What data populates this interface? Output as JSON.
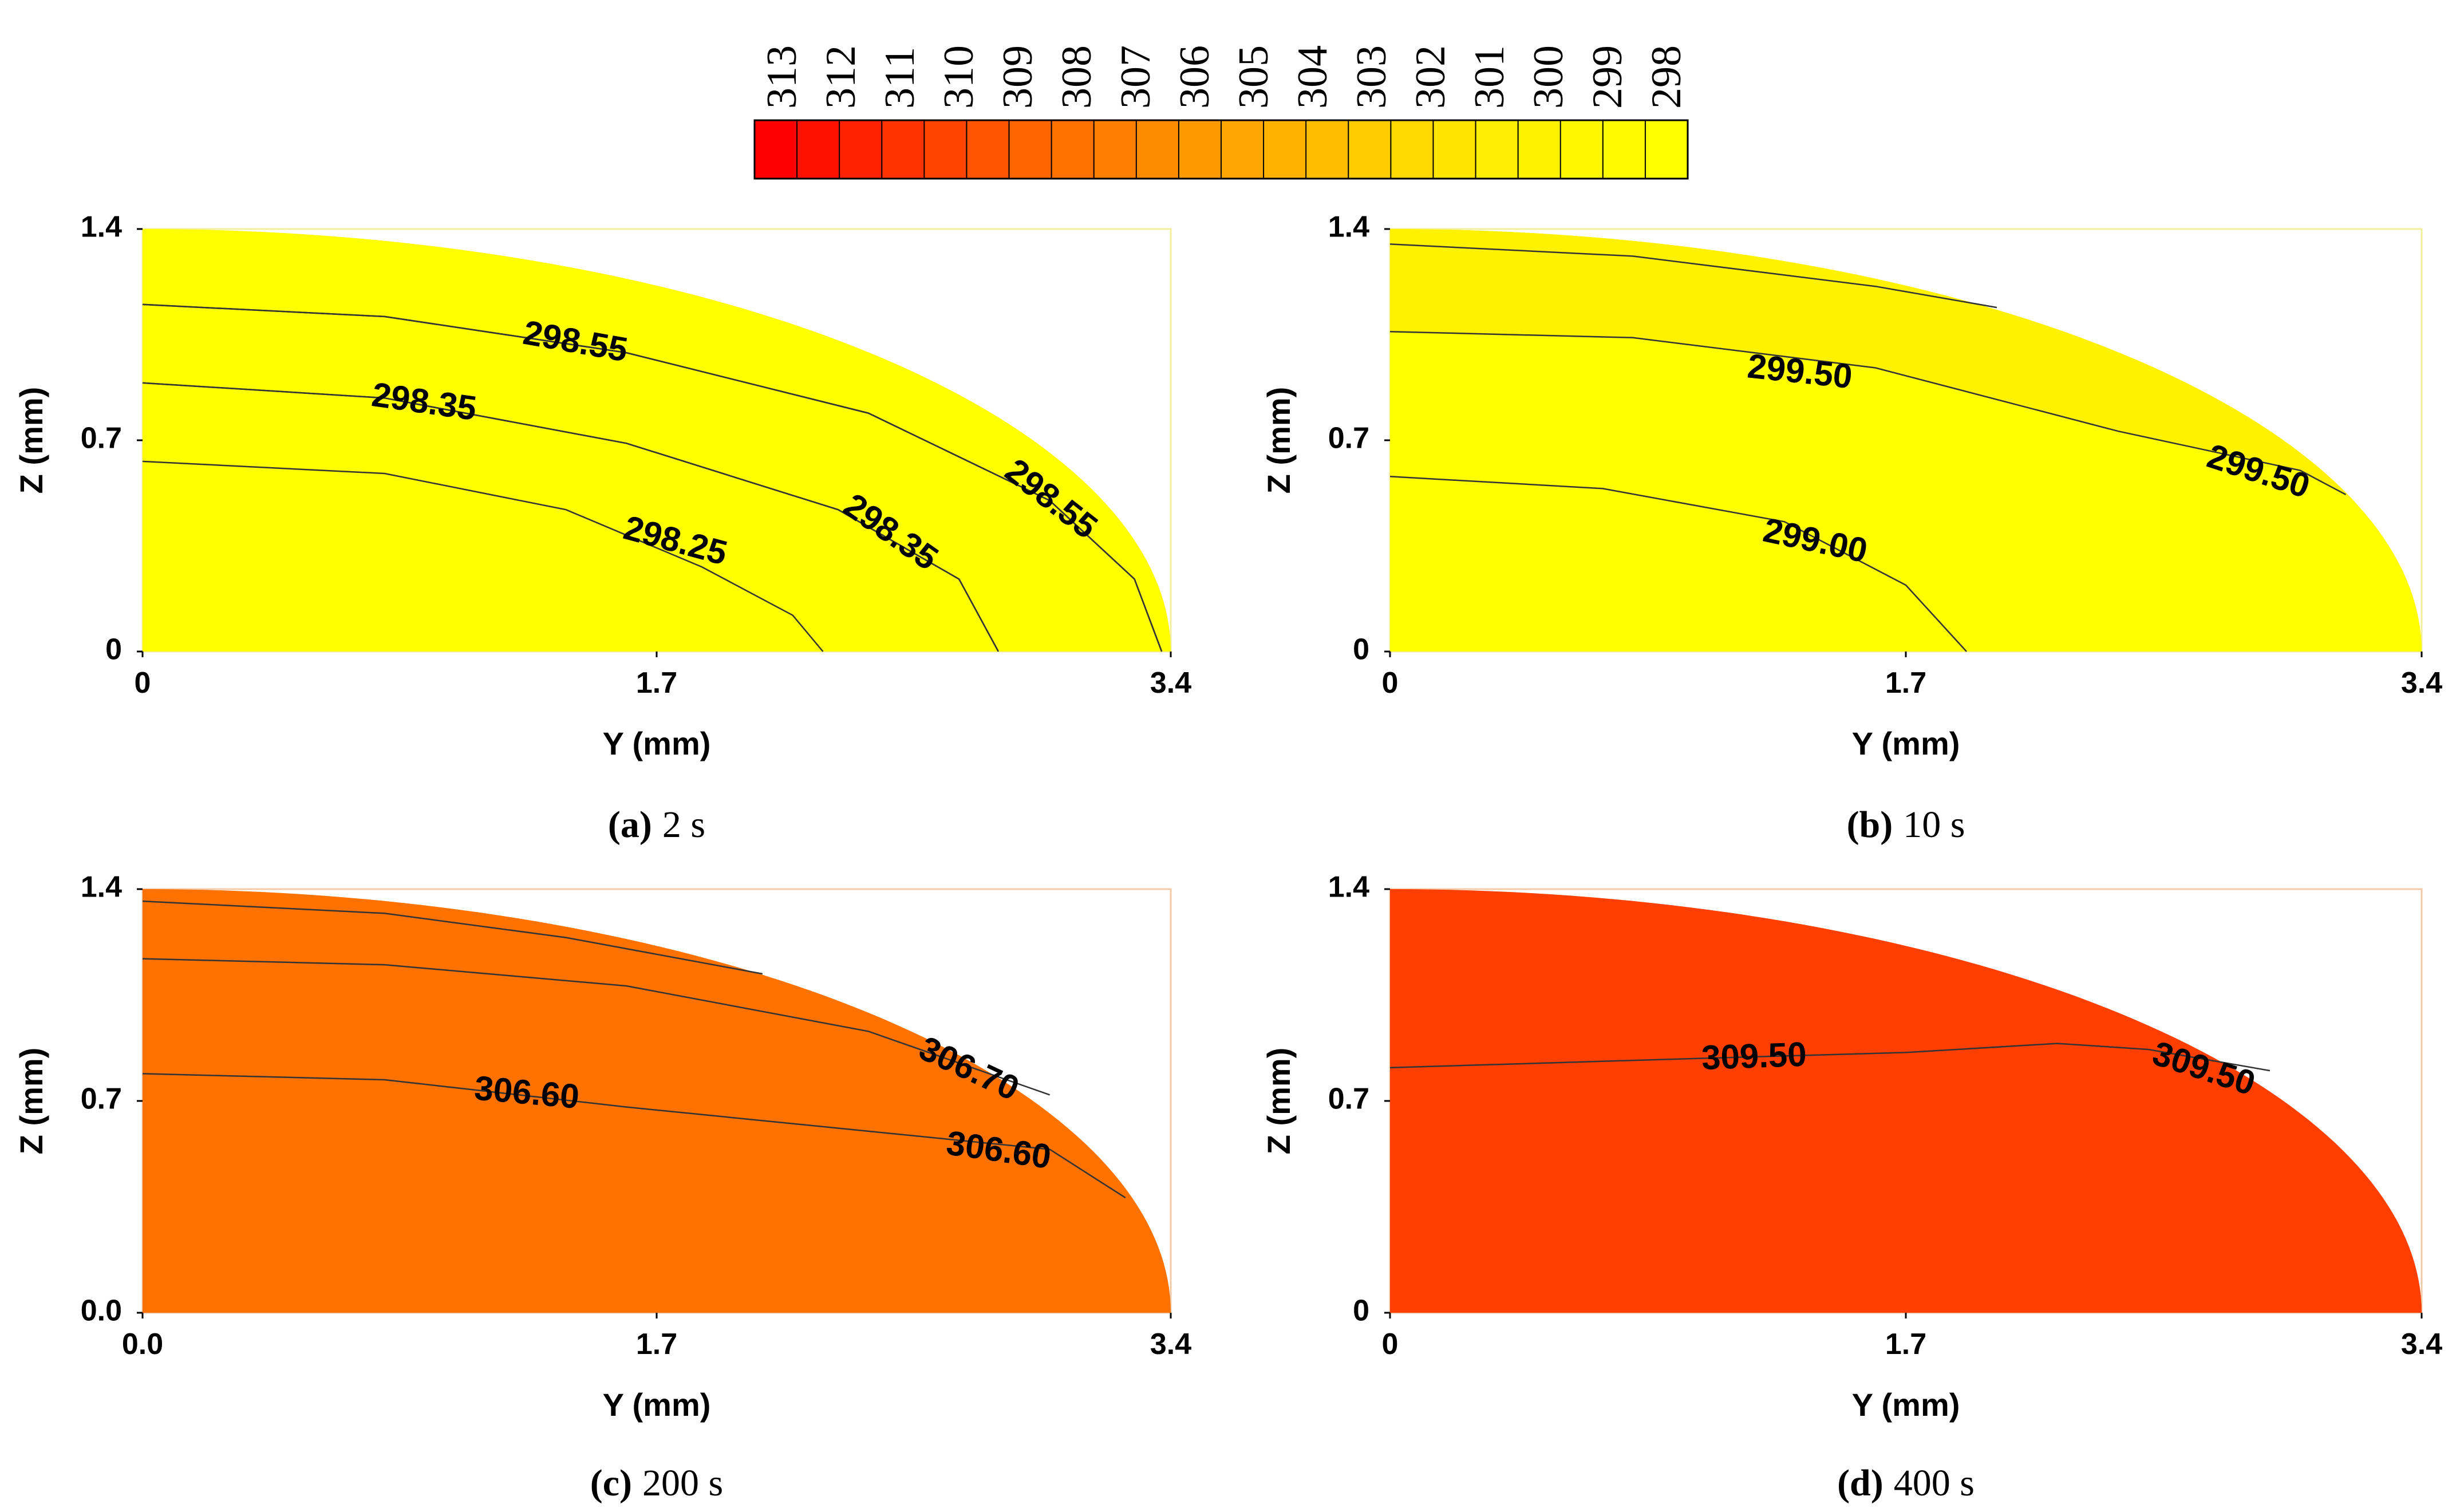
{
  "colorbar": {
    "labels": [
      "313",
      "312",
      "311",
      "310",
      "309",
      "308",
      "307",
      "306",
      "305",
      "304",
      "303",
      "302",
      "301",
      "300",
      "299",
      "298"
    ],
    "colors": [
      "#ff0000",
      "#ff1100",
      "#ff2200",
      "#ff3300",
      "#ff4400",
      "#ff5500",
      "#ff6600",
      "#ff7200",
      "#ff7f00",
      "#ff8c00",
      "#ff9900",
      "#ffa600",
      "#ffb200",
      "#ffbf00",
      "#ffcc00",
      "#ffd900",
      "#ffe500",
      "#ffee00",
      "#fff200",
      "#fff700",
      "#fffa00",
      "#ffff00"
    ]
  },
  "chart_data": [
    {
      "type": "contour",
      "caption_letter": "(a)",
      "caption_time": "2 s",
      "fill_color": "#ffff00",
      "xlabel": "Y (mm)",
      "ylabel": "Z (mm)",
      "xlim": [
        0,
        3.4
      ],
      "ylim": [
        0,
        1.4
      ],
      "xticks": [
        "0",
        "1.7",
        "3.4"
      ],
      "yticks": [
        "0",
        "0.7",
        "1.4"
      ],
      "contours": [
        {
          "value": "298.25",
          "points": [
            [
              0,
              0.63
            ],
            [
              0.8,
              0.59
            ],
            [
              1.4,
              0.47
            ],
            [
              1.85,
              0.28
            ],
            [
              2.15,
              0.12
            ],
            [
              2.25,
              0
            ]
          ]
        },
        {
          "value": "298.35",
          "points": [
            [
              0,
              0.89
            ],
            [
              0.8,
              0.84
            ],
            [
              1.6,
              0.69
            ],
            [
              2.3,
              0.47
            ],
            [
              2.7,
              0.24
            ],
            [
              2.83,
              0
            ]
          ]
        },
        {
          "value": "298.35",
          "points": [
            [
              0,
              0.89
            ],
            [
              0.8,
              0.84
            ],
            [
              1.6,
              0.69
            ],
            [
              2.3,
              0.47
            ],
            [
              2.7,
              0.24
            ],
            [
              2.83,
              0
            ]
          ]
        },
        {
          "value": "298.55",
          "points": [
            [
              0,
              1.15
            ],
            [
              0.8,
              1.11
            ],
            [
              1.6,
              0.99
            ],
            [
              2.4,
              0.79
            ],
            [
              3.0,
              0.5
            ],
            [
              3.28,
              0.24
            ],
            [
              3.37,
              0
            ]
          ]
        },
        {
          "value": "298.55",
          "points": [
            [
              0,
              1.15
            ],
            [
              0.8,
              1.11
            ],
            [
              1.6,
              0.99
            ],
            [
              2.4,
              0.79
            ],
            [
              3.0,
              0.5
            ],
            [
              3.28,
              0.24
            ],
            [
              3.37,
              0
            ]
          ]
        }
      ],
      "labels": [
        {
          "text": "298.55",
          "x": 1.43,
          "y": 1.02,
          "angle": 10
        },
        {
          "text": "298.35",
          "x": 0.93,
          "y": 0.82,
          "angle": 8
        },
        {
          "text": "298.25",
          "x": 1.76,
          "y": 0.36,
          "angle": 15
        },
        {
          "text": "298.35",
          "x": 2.47,
          "y": 0.39,
          "angle": 35
        },
        {
          "text": "298.55",
          "x": 3.0,
          "y": 0.5,
          "angle": 38
        }
      ]
    },
    {
      "type": "contour",
      "caption_letter": "(b)",
      "caption_time": "10 s",
      "fill_color": "#ffff00",
      "band_color": "#fff200",
      "xlabel": "Y (mm)",
      "ylabel": "Z (mm)",
      "xlim": [
        0,
        3.4
      ],
      "ylim": [
        0,
        1.4
      ],
      "xticks": [
        "0",
        "1.7",
        "3.4"
      ],
      "yticks": [
        "0",
        "0.7",
        "1.4"
      ],
      "contours": [
        {
          "value": "299.00",
          "points": [
            [
              0,
              0.58
            ],
            [
              0.7,
              0.54
            ],
            [
              1.3,
              0.43
            ],
            [
              1.7,
              0.22
            ],
            [
              1.9,
              0
            ]
          ]
        },
        {
          "value": "299.50",
          "points": [
            [
              0,
              1.06
            ],
            [
              0.8,
              1.04
            ],
            [
              1.6,
              0.94
            ],
            [
              2.4,
              0.73
            ],
            [
              3.0,
              0.6
            ],
            [
              3.15,
              0.52
            ]
          ]
        },
        {
          "value": "",
          "points": [
            [
              0,
              1.35
            ],
            [
              0.8,
              1.31
            ],
            [
              1.6,
              1.21
            ],
            [
              2.0,
              1.14
            ]
          ]
        }
      ],
      "labels": [
        {
          "text": "299.50",
          "x": 1.35,
          "y": 0.92,
          "angle": 6
        },
        {
          "text": "299.50",
          "x": 2.86,
          "y": 0.59,
          "angle": 18
        },
        {
          "text": "299.00",
          "x": 1.4,
          "y": 0.36,
          "angle": 12
        }
      ]
    },
    {
      "type": "contour",
      "caption_letter": "(c)",
      "caption_time": "200 s",
      "fill_color": "#ff7200",
      "xlabel": "Y (mm)",
      "ylabel": "Z (mm)",
      "xlim": [
        0,
        3.4
      ],
      "ylim": [
        0,
        1.4
      ],
      "xticks": [
        "0.0",
        "1.7",
        "3.4"
      ],
      "yticks": [
        "0.0",
        "0.7",
        "1.4"
      ],
      "contours": [
        {
          "value": "306.60",
          "points": [
            [
              0,
              0.79
            ],
            [
              0.8,
              0.77
            ],
            [
              1.6,
              0.68
            ],
            [
              2.4,
              0.6
            ],
            [
              3.0,
              0.54
            ],
            [
              3.25,
              0.38
            ]
          ]
        },
        {
          "value": "306.70",
          "points": [
            [
              0,
              1.17
            ],
            [
              0.8,
              1.15
            ],
            [
              1.6,
              1.08
            ],
            [
              2.4,
              0.93
            ],
            [
              3.0,
              0.72
            ]
          ]
        },
        {
          "value": "",
          "points": [
            [
              0,
              1.36
            ],
            [
              0.8,
              1.32
            ],
            [
              1.4,
              1.24
            ],
            [
              2.05,
              1.12
            ]
          ]
        }
      ],
      "labels": [
        {
          "text": "306.60",
          "x": 1.27,
          "y": 0.72,
          "angle": 5
        },
        {
          "text": "306.70",
          "x": 2.73,
          "y": 0.8,
          "angle": 25
        },
        {
          "text": "306.60",
          "x": 2.83,
          "y": 0.53,
          "angle": 8
        }
      ]
    },
    {
      "type": "contour",
      "caption_letter": "(d)",
      "caption_time": "400 s",
      "fill_color": "#ff3f00",
      "xlabel": "Y (mm)",
      "ylabel": "Z (mm)",
      "xlim": [
        0,
        3.4
      ],
      "ylim": [
        0,
        1.4
      ],
      "xticks": [
        "0",
        "1.7",
        "3.4"
      ],
      "yticks": [
        "0",
        "0.7",
        "1.4"
      ],
      "contours": [
        {
          "value": "309.50",
          "points": [
            [
              0,
              0.81
            ],
            [
              1.0,
              0.84
            ],
            [
              1.7,
              0.86
            ],
            [
              2.2,
              0.89
            ],
            [
              2.5,
              0.87
            ],
            [
              2.9,
              0.8
            ]
          ]
        }
      ],
      "labels": [
        {
          "text": "309.50",
          "x": 1.2,
          "y": 0.84,
          "angle": -2
        },
        {
          "text": "309.50",
          "x": 2.68,
          "y": 0.8,
          "angle": 18
        }
      ]
    }
  ]
}
